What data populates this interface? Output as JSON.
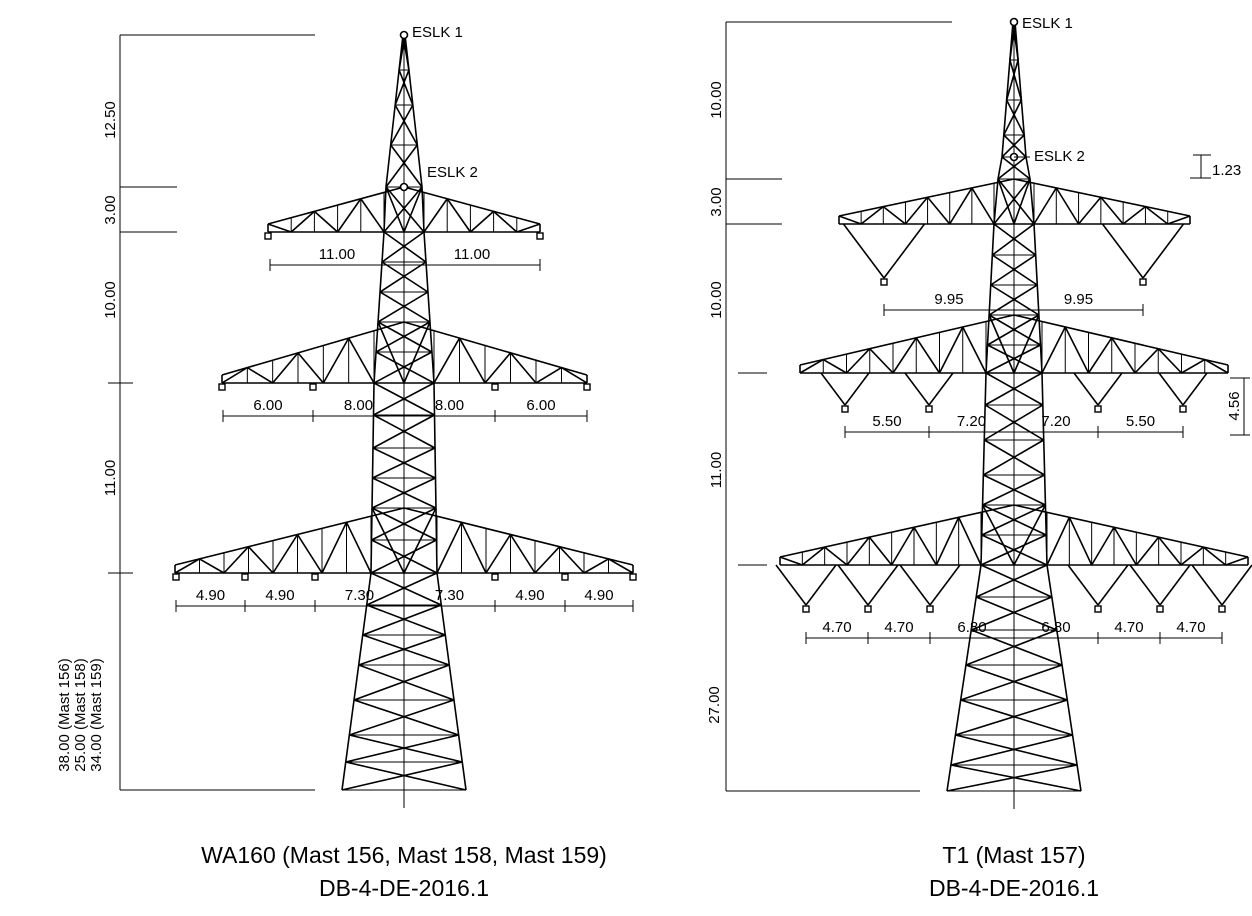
{
  "towers": [
    {
      "caption": [
        "WA160 (Mast 156, Mast 158, Mast 159)",
        "DB-4-DE-2016.1"
      ],
      "points": [
        "ESLK 1",
        "ESLK 2"
      ],
      "vertical_dims": [
        "12.50",
        "3.00",
        "10.00",
        "11.00"
      ],
      "height_dims": [
        "38.00 (Mast 156)",
        "25.00 (Mast 158)",
        "34.00 (Mast 159)"
      ],
      "arm_dims": [
        [
          "11.00",
          "11.00"
        ],
        [
          "6.00",
          "8.00",
          "8.00",
          "6.00"
        ],
        [
          "4.90",
          "4.90",
          "7.30",
          "7.30",
          "4.90",
          "4.90"
        ]
      ],
      "side_dims": []
    },
    {
      "caption": [
        "T1 (Mast 157)",
        "DB-4-DE-2016.1"
      ],
      "points": [
        "ESLK 1",
        "ESLK 2"
      ],
      "vertical_dims": [
        "10.00",
        "3.00",
        "10.00",
        "11.00"
      ],
      "height_dims": [
        "27.00"
      ],
      "arm_dims": [
        [
          "9.95",
          "9.95"
        ],
        [
          "5.50",
          "7.20",
          "7.20",
          "5.50"
        ],
        [
          "4.70",
          "4.70",
          "6.80",
          "6.80",
          "4.70",
          "4.70"
        ]
      ],
      "side_dims": [
        "1.23",
        "4.56"
      ]
    }
  ]
}
